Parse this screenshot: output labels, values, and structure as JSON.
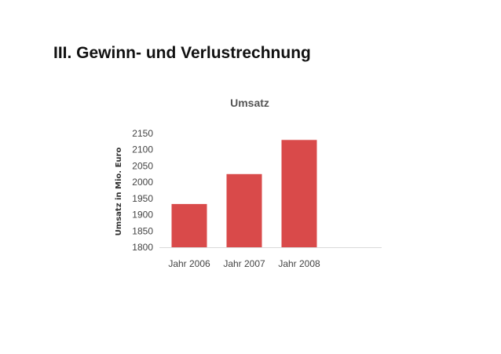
{
  "page": {
    "heading": "III. Gewinn- und Verlustrechnung"
  },
  "chart_data": {
    "type": "bar",
    "title": "Umsatz",
    "xlabel": "",
    "ylabel": "Umsatz in Mio. Euro",
    "categories": [
      "Jahr 2006",
      "Jahr 2007",
      "Jahr 2008"
    ],
    "values": [
      1933,
      2025,
      2130
    ],
    "ylim": [
      1800,
      2150
    ],
    "yticks": [
      1800,
      1850,
      1900,
      1950,
      2000,
      2050,
      2100,
      2150
    ],
    "grid": false,
    "legend": "none",
    "bar_color": "#d94a4a"
  }
}
